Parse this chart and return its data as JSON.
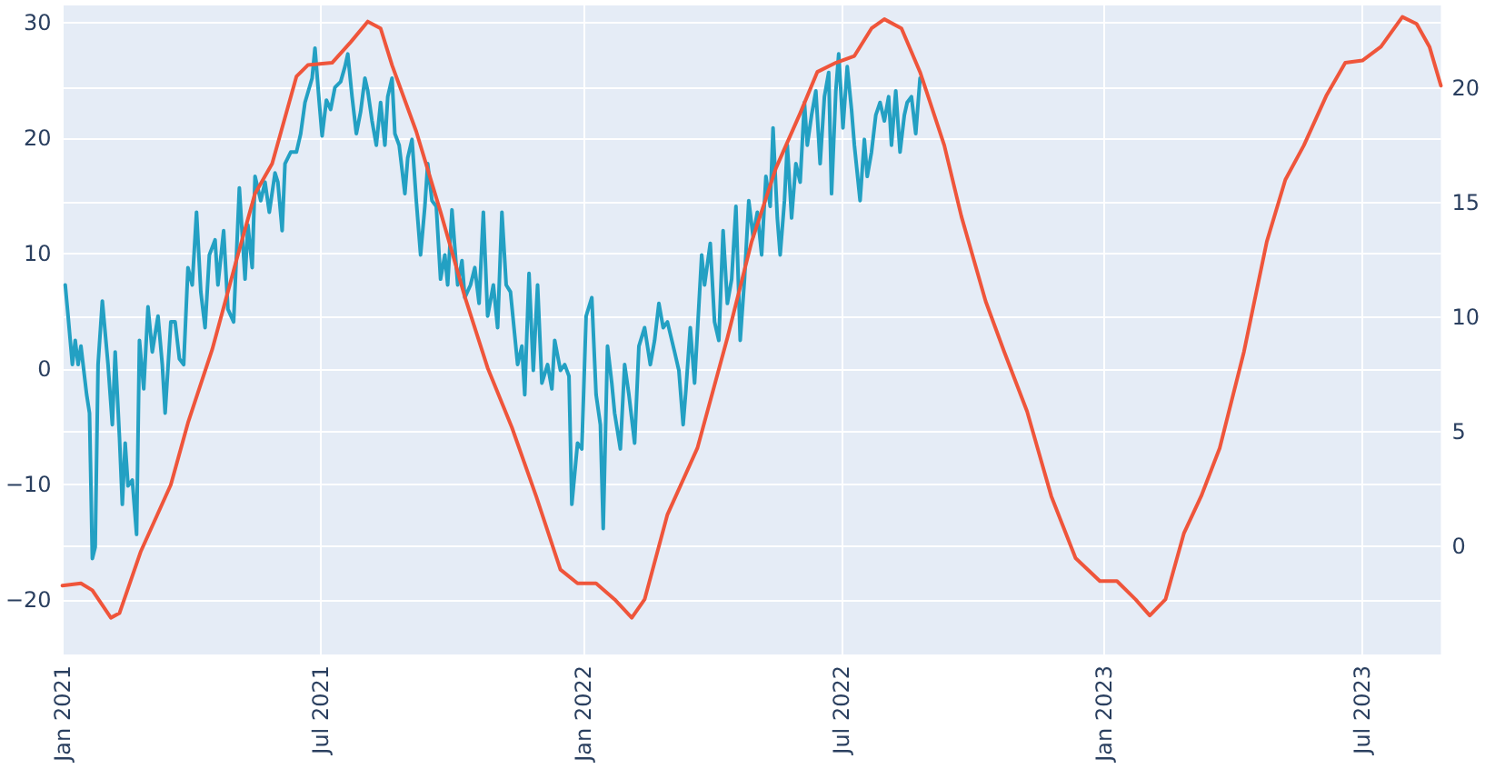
{
  "chart_data": {
    "type": "line",
    "xlim": [
      "2021-01-01",
      "2023-08-25"
    ],
    "xticks": [
      {
        "value": "2021-01-01",
        "label": "Jan 2021"
      },
      {
        "value": "2021-07-01",
        "label": "Jul 2021"
      },
      {
        "value": "2022-01-01",
        "label": "Jan 2022"
      },
      {
        "value": "2022-07-01",
        "label": "Jul 2022"
      },
      {
        "value": "2023-01-01",
        "label": "Jan 2023"
      },
      {
        "value": "2023-07-01",
        "label": "Jul 2023"
      }
    ],
    "ylim": [
      -24.7,
      31.5
    ],
    "yticks": [
      {
        "value": -20,
        "label": "−20"
      },
      {
        "value": -10,
        "label": "−10"
      },
      0,
      10,
      20,
      30
    ],
    "y2lim": [
      -4.7,
      23.6
    ],
    "y2ticks": [
      0,
      5,
      10,
      15,
      20
    ],
    "grid": true,
    "series": [
      {
        "color": "#23a0c3",
        "axis": "y",
        "x": [
          "2021-01-03",
          "2021-01-05",
          "2021-01-08",
          "2021-01-10",
          "2021-01-12",
          "2021-01-14",
          "2021-01-18",
          "2021-01-20",
          "2021-01-22",
          "2021-01-24",
          "2021-01-26",
          "2021-01-29",
          "2021-02-02",
          "2021-02-05",
          "2021-02-07",
          "2021-02-10",
          "2021-02-12",
          "2021-02-14",
          "2021-02-16",
          "2021-02-19",
          "2021-02-22",
          "2021-02-24",
          "2021-02-27",
          "2021-03-02",
          "2021-03-05",
          "2021-03-09",
          "2021-03-12",
          "2021-03-14",
          "2021-03-18",
          "2021-03-21",
          "2021-03-24",
          "2021-03-27",
          "2021-03-30",
          "2021-04-02",
          "2021-04-05",
          "2021-04-08",
          "2021-04-11",
          "2021-04-14",
          "2021-04-18",
          "2021-04-20",
          "2021-04-24",
          "2021-04-27",
          "2021-05-01",
          "2021-05-05",
          "2021-05-09",
          "2021-05-11",
          "2021-05-14",
          "2021-05-16",
          "2021-05-20",
          "2021-05-23",
          "2021-05-26",
          "2021-05-30",
          "2021-06-01",
          "2021-06-04",
          "2021-06-06",
          "2021-06-10",
          "2021-06-14",
          "2021-06-17",
          "2021-06-20",
          "2021-06-25",
          "2021-06-27",
          "2021-06-30",
          "2021-07-02",
          "2021-07-05",
          "2021-07-08",
          "2021-07-11",
          "2021-07-15",
          "2021-07-18",
          "2021-07-20",
          "2021-07-23",
          "2021-07-26",
          "2021-07-29",
          "2021-08-01",
          "2021-08-03",
          "2021-08-06",
          "2021-08-09",
          "2021-08-12",
          "2021-08-15",
          "2021-08-17",
          "2021-08-20",
          "2021-08-22",
          "2021-08-25",
          "2021-08-29",
          "2021-08-31",
          "2021-09-03",
          "2021-09-06",
          "2021-09-09",
          "2021-09-12",
          "2021-09-14",
          "2021-09-17",
          "2021-09-20",
          "2021-09-23",
          "2021-09-26",
          "2021-09-28",
          "2021-10-01",
          "2021-10-05",
          "2021-10-08",
          "2021-10-10",
          "2021-10-14",
          "2021-10-17",
          "2021-10-20",
          "2021-10-23",
          "2021-10-26",
          "2021-10-30",
          "2021-11-02",
          "2021-11-05",
          "2021-11-08",
          "2021-11-11",
          "2021-11-16",
          "2021-11-19",
          "2021-11-21",
          "2021-11-24",
          "2021-11-27",
          "2021-11-30",
          "2021-12-03",
          "2021-12-07",
          "2021-12-10",
          "2021-12-12",
          "2021-12-16",
          "2021-12-19",
          "2021-12-22",
          "2021-12-24",
          "2021-12-28",
          "2021-12-31",
          "2022-01-03",
          "2022-01-07",
          "2022-01-10",
          "2022-01-13",
          "2022-01-15",
          "2022-01-18",
          "2022-01-21",
          "2022-01-23",
          "2022-01-27",
          "2022-01-30",
          "2022-02-02",
          "2022-02-06",
          "2022-02-09",
          "2022-02-13",
          "2022-02-17",
          "2022-02-20",
          "2022-02-23",
          "2022-02-26",
          "2022-03-01",
          "2022-03-06",
          "2022-03-09",
          "2022-03-12",
          "2022-03-14",
          "2022-03-17",
          "2022-03-20",
          "2022-03-25",
          "2022-03-27",
          "2022-03-31",
          "2022-04-03",
          "2022-04-06",
          "2022-04-09",
          "2022-04-12",
          "2022-04-15",
          "2022-04-18",
          "2022-04-21",
          "2022-04-24",
          "2022-04-27",
          "2022-04-30",
          "2022-05-03",
          "2022-05-06",
          "2022-05-09",
          "2022-05-12",
          "2022-05-14",
          "2022-05-17",
          "2022-05-19",
          "2022-05-22",
          "2022-05-24",
          "2022-05-27",
          "2022-05-30",
          "2022-06-02",
          "2022-06-05",
          "2022-06-07",
          "2022-06-10",
          "2022-06-13",
          "2022-06-16",
          "2022-06-19",
          "2022-06-22",
          "2022-06-24",
          "2022-06-27",
          "2022-06-29",
          "2022-07-02",
          "2022-07-05",
          "2022-07-08",
          "2022-07-10",
          "2022-07-14",
          "2022-07-17",
          "2022-07-19",
          "2022-07-22",
          "2022-07-25",
          "2022-07-28",
          "2022-07-31",
          "2022-08-03",
          "2022-08-05",
          "2022-08-08",
          "2022-08-11",
          "2022-08-14",
          "2022-08-16",
          "2022-08-19",
          "2022-08-22",
          "2022-08-25"
        ],
        "values": [
          7.3,
          4.6,
          0.4,
          2.5,
          0.4,
          2.0,
          -2.2,
          -3.8,
          -16.4,
          -15.4,
          0.4,
          5.9,
          0.4,
          -4.8,
          1.5,
          -5.9,
          -11.7,
          -6.4,
          -10.1,
          -9.6,
          -14.3,
          2.5,
          -1.7,
          5.4,
          1.5,
          4.6,
          0.4,
          -3.8,
          4.1,
          4.1,
          0.9,
          0.4,
          8.8,
          7.3,
          13.6,
          6.7,
          3.6,
          9.9,
          11.2,
          7.3,
          12.0,
          5.2,
          4.1,
          15.7,
          7.8,
          12.5,
          8.8,
          16.7,
          14.6,
          16.2,
          13.6,
          17.0,
          16.2,
          12.0,
          17.8,
          18.8,
          18.8,
          20.4,
          23.1,
          25.2,
          27.8,
          23.1,
          20.2,
          23.3,
          22.5,
          24.4,
          24.9,
          26.2,
          27.3,
          23.6,
          20.4,
          22.3,
          25.2,
          24.1,
          21.5,
          19.4,
          23.1,
          19.4,
          23.6,
          25.2,
          20.4,
          19.4,
          15.2,
          18.3,
          19.9,
          14.6,
          9.9,
          14.1,
          17.8,
          14.6,
          14.1,
          7.8,
          9.9,
          7.3,
          13.8,
          7.3,
          9.4,
          6.2,
          7.3,
          8.8,
          5.7,
          13.6,
          4.6,
          7.3,
          3.6,
          13.6,
          7.3,
          6.7,
          0.4,
          2.0,
          -2.2,
          8.3,
          -0.1,
          7.3,
          -1.2,
          0.4,
          -1.7,
          2.5,
          -0.1,
          0.4,
          -0.6,
          -11.7,
          -6.4,
          -6.9,
          4.6,
          6.2,
          -2.2,
          -4.8,
          -13.8,
          2.0,
          -1.2,
          -3.8,
          -6.9,
          0.4,
          -2.2,
          -6.4,
          2.0,
          3.6,
          0.4,
          2.5,
          5.7,
          3.6,
          4.1,
          1.5,
          -0.1,
          -4.8,
          -1.7,
          3.6,
          -1.2,
          9.9,
          7.3,
          10.9,
          4.1,
          2.5,
          12.0,
          5.7,
          7.8,
          14.1,
          2.5,
          7.8,
          14.6,
          11.5,
          13.6,
          9.9,
          16.7,
          14.1,
          20.9,
          13.1,
          9.9,
          14.6,
          19.4,
          13.1,
          17.8,
          16.2,
          23.1,
          19.4,
          22.0,
          24.1,
          17.8,
          23.6,
          25.7,
          15.2,
          24.1,
          27.3,
          20.9,
          26.2,
          22.5,
          19.4,
          14.6,
          19.9,
          16.7,
          18.8,
          22.0,
          23.1,
          21.5,
          23.6,
          19.4,
          24.1,
          18.8,
          22.0,
          23.1,
          23.6,
          20.4,
          25.2
        ]
      },
      {
        "color": "#ef553b",
        "axis": "y2",
        "x": [
          "2021-01-01",
          "2021-01-14",
          "2021-01-22",
          "2021-02-04",
          "2021-02-10",
          "2021-02-25",
          "2021-03-18",
          "2021-03-30",
          "2021-04-16",
          "2021-05-03",
          "2021-05-16",
          "2021-05-28",
          "2021-06-14",
          "2021-06-22",
          "2021-07-09",
          "2021-07-22",
          "2021-08-03",
          "2021-08-12",
          "2021-08-20",
          "2021-09-06",
          "2021-09-23",
          "2021-10-10",
          "2021-10-26",
          "2021-11-12",
          "2021-11-29",
          "2021-12-16",
          "2021-12-28",
          "2022-01-10",
          "2022-01-23",
          "2022-02-04",
          "2022-02-13",
          "2022-03-01",
          "2022-03-22",
          "2022-04-12",
          "2022-04-29",
          "2022-05-16",
          "2022-06-02",
          "2022-06-14",
          "2022-06-27",
          "2022-07-10",
          "2022-07-22",
          "2022-07-31",
          "2022-08-12",
          "2022-08-25",
          "2022-09-11",
          "2022-09-23",
          "2022-10-10",
          "2022-10-23",
          "2022-11-08",
          "2022-11-25",
          "2022-12-12",
          "2022-12-29",
          "2023-01-10",
          "2023-01-23",
          "2023-02-02",
          "2023-02-13",
          "2023-02-26",
          "2023-03-10",
          "2023-03-23",
          "2023-04-09",
          "2023-04-25",
          "2023-05-08",
          "2023-05-21",
          "2023-06-06",
          "2023-06-19",
          "2023-07-01",
          "2023-07-14",
          "2023-07-29",
          "2023-08-08",
          "2023-08-17",
          "2023-08-25"
        ],
        "values": [
          -1.7,
          -1.6,
          -1.9,
          -3.1,
          -2.9,
          -0.2,
          2.7,
          5.4,
          8.6,
          12.5,
          15.4,
          16.7,
          20.5,
          21.0,
          21.1,
          22.0,
          22.9,
          22.6,
          21.0,
          18.1,
          14.6,
          10.9,
          7.8,
          5.2,
          2.2,
          -1.0,
          -1.6,
          -1.6,
          -2.3,
          -3.1,
          -2.3,
          1.4,
          4.3,
          9.1,
          13.3,
          16.5,
          18.9,
          20.7,
          21.1,
          21.4,
          22.6,
          23.0,
          22.6,
          20.7,
          17.5,
          14.4,
          10.7,
          8.5,
          5.9,
          2.2,
          -0.5,
          -1.5,
          -1.5,
          -2.3,
          -3.0,
          -2.3,
          0.6,
          2.2,
          4.3,
          8.5,
          13.3,
          16.0,
          17.5,
          19.7,
          21.1,
          21.2,
          21.8,
          23.1,
          22.8,
          21.8,
          20.1
        ]
      }
    ]
  }
}
